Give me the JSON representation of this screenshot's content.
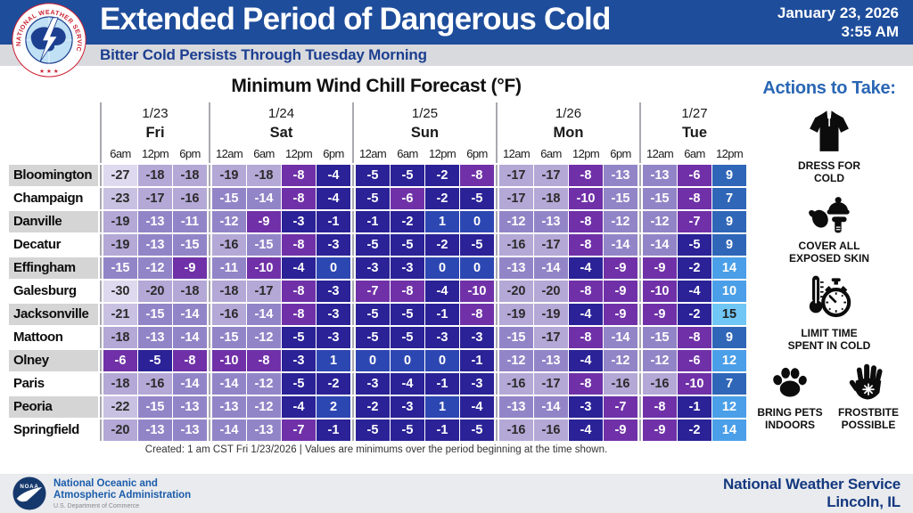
{
  "header": {
    "agency_ring_text": "NATIONAL WEATHER SERVICE",
    "stars": "★ ★ ★",
    "title": "Extended Period of Dangerous Cold",
    "subtitle": "Bitter Cold Persists Through Tuesday Morning",
    "date_line1": "January 23, 2026",
    "date_line2": "3:55 AM"
  },
  "chart_data": {
    "type": "table",
    "title": "Minimum Wind Chill Forecast (°F)",
    "day_groups": [
      {
        "date": "1/23",
        "day": "Fri",
        "times": [
          "6am",
          "12pm",
          "6pm"
        ]
      },
      {
        "date": "1/24",
        "day": "Sat",
        "times": [
          "12am",
          "6am",
          "12pm",
          "6pm"
        ]
      },
      {
        "date": "1/25",
        "day": "Sun",
        "times": [
          "12am",
          "6am",
          "12pm",
          "6pm"
        ]
      },
      {
        "date": "1/26",
        "day": "Mon",
        "times": [
          "12am",
          "6am",
          "12pm",
          "6pm"
        ]
      },
      {
        "date": "1/27",
        "day": "Tue",
        "times": [
          "12am",
          "6am",
          "12pm"
        ]
      }
    ],
    "rows": [
      {
        "city": "Bloomington",
        "values": [
          -27,
          -18,
          -18,
          -19,
          -18,
          -8,
          -4,
          -5,
          -5,
          -2,
          -8,
          -17,
          -17,
          -8,
          -13,
          -13,
          -6,
          9
        ]
      },
      {
        "city": "Champaign",
        "values": [
          -23,
          -17,
          -16,
          -15,
          -14,
          -8,
          -4,
          -5,
          -6,
          -2,
          -5,
          -17,
          -18,
          -10,
          -15,
          -15,
          -8,
          7
        ]
      },
      {
        "city": "Danville",
        "values": [
          -19,
          -13,
          -11,
          -12,
          -9,
          -3,
          -1,
          -1,
          -2,
          1,
          0,
          -12,
          -13,
          -8,
          -12,
          -12,
          -7,
          9
        ]
      },
      {
        "city": "Decatur",
        "values": [
          -19,
          -13,
          -15,
          -16,
          -15,
          -8,
          -3,
          -5,
          -5,
          -2,
          -5,
          -16,
          -17,
          -8,
          -14,
          -14,
          -5,
          9
        ]
      },
      {
        "city": "Effingham",
        "values": [
          -15,
          -12,
          -9,
          -11,
          -10,
          -4,
          0,
          -3,
          -3,
          0,
          0,
          -13,
          -14,
          -4,
          -9,
          -9,
          -2,
          14
        ]
      },
      {
        "city": "Galesburg",
        "values": [
          -30,
          -20,
          -18,
          -18,
          -17,
          -8,
          -3,
          -7,
          -8,
          -4,
          -10,
          -20,
          -20,
          -8,
          -9,
          -10,
          -4,
          10
        ]
      },
      {
        "city": "Jacksonville",
        "values": [
          -21,
          -15,
          -14,
          -16,
          -14,
          -8,
          -3,
          -5,
          -5,
          -1,
          -8,
          -19,
          -19,
          -4,
          -9,
          -9,
          -2,
          15
        ]
      },
      {
        "city": "Mattoon",
        "values": [
          -18,
          -13,
          -14,
          -15,
          -12,
          -5,
          -3,
          -5,
          -5,
          -3,
          -3,
          -15,
          -17,
          -8,
          -14,
          -15,
          -8,
          9
        ]
      },
      {
        "city": "Olney",
        "values": [
          -6,
          -5,
          -8,
          -10,
          -8,
          -3,
          1,
          0,
          0,
          0,
          -1,
          -12,
          -13,
          -4,
          -12,
          -12,
          -6,
          12
        ]
      },
      {
        "city": "Paris",
        "values": [
          -18,
          -16,
          -14,
          -14,
          -12,
          -5,
          -2,
          -3,
          -4,
          -1,
          -3,
          -16,
          -17,
          -8,
          -16,
          -16,
          -10,
          7
        ]
      },
      {
        "city": "Peoria",
        "values": [
          -22,
          -15,
          -13,
          -13,
          -12,
          -4,
          2,
          -2,
          -3,
          1,
          -4,
          -13,
          -14,
          -3,
          -7,
          -8,
          -1,
          12
        ]
      },
      {
        "city": "Springfield",
        "values": [
          -20,
          -13,
          -13,
          -14,
          -13,
          -7,
          -1,
          -5,
          -5,
          -1,
          -5,
          -16,
          -16,
          -4,
          -9,
          -9,
          -2,
          14
        ]
      }
    ],
    "footnote": "Created: 1 am CST Fri 1/23/2026  |  Values are minimums over the period beginning at the time shown.",
    "color_bins": [
      {
        "max": -25,
        "bg": "#ded9ee",
        "fg": "#2b2b2b"
      },
      {
        "max": -21,
        "bg": "#c9c1e2",
        "fg": "#2b2b2b"
      },
      {
        "max": -16,
        "bg": "#b3a8d6",
        "fg": "#2b2b2b"
      },
      {
        "max": -11,
        "bg": "#9285c7",
        "fg": "#ffffff"
      },
      {
        "max": -6,
        "bg": "#7031a8",
        "fg": "#ffffff"
      },
      {
        "max": -1,
        "bg": "#2a2296",
        "fg": "#ffffff"
      },
      {
        "max": 4,
        "bg": "#2d47b2",
        "fg": "#ffffff"
      },
      {
        "max": 9,
        "bg": "#2f66b8",
        "fg": "#ffffff"
      },
      {
        "max": 14,
        "bg": "#4a9fe8",
        "fg": "#ffffff"
      },
      {
        "max": 99,
        "bg": "#70c6f5",
        "fg": "#222222"
      }
    ],
    "row_label_colors": [
      "#d5d5d5",
      "#ffffff"
    ]
  },
  "actions": {
    "heading": "Actions to Take:",
    "items": [
      {
        "icon": "jacket-icon",
        "line1": "DRESS FOR",
        "line2": "COLD"
      },
      {
        "icon": "winter-gear-icon",
        "line1": "COVER ALL",
        "line2": "EXPOSED SKIN"
      },
      {
        "icon": "thermometer-stopwatch-icon",
        "line1": "LIMIT TIME",
        "line2": "SPENT IN COLD"
      },
      {
        "icon": "paw-icon",
        "line1": "BRING PETS",
        "line2": "INDOORS"
      },
      {
        "icon": "frostbite-hand-icon",
        "line1": "FROSTBITE",
        "line2": "POSSIBLE"
      }
    ]
  },
  "footer": {
    "noaa_label": "NOAA",
    "left_line1": "National Oceanic and",
    "left_line2": "Atmospheric Administration",
    "left_line3": "U.S. Department of Commerce",
    "right_line1": "National Weather Service",
    "right_line2": "Lincoln, IL"
  }
}
